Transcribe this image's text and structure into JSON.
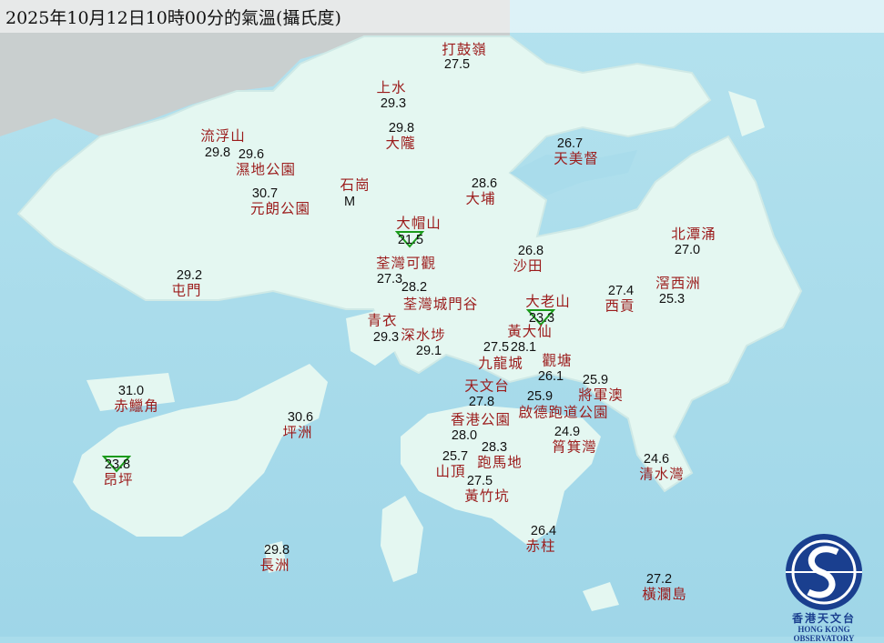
{
  "title": "2025年10月12日10時00分的氣溫(攝氏度)",
  "colors": {
    "sea": "#a9dceb",
    "land": "#e4f7f1",
    "station_name": "#9b1b1b",
    "temperature": "#111111",
    "min_marker": "#1a9a1a"
  },
  "stations": [
    {
      "name": "打鼓嶺",
      "temp": "27.5"
    },
    {
      "name": "上水",
      "temp": "29.3"
    },
    {
      "name": "大隴",
      "temp": "29.8"
    },
    {
      "name": "流浮山",
      "temp": "29.8"
    },
    {
      "name": "濕地公園",
      "temp": "29.6"
    },
    {
      "name": "天美督",
      "temp": "26.7"
    },
    {
      "name": "大埔",
      "temp": "28.6"
    },
    {
      "name": "石崗",
      "temp": "M"
    },
    {
      "name": "元朗公園",
      "temp": "30.7"
    },
    {
      "name": "大帽山",
      "temp": "21.5",
      "marker": "min-triangle"
    },
    {
      "name": "北潭涌",
      "temp": "27.0"
    },
    {
      "name": "沙田",
      "temp": "26.8"
    },
    {
      "name": "荃灣可觀",
      "temp": "27.3"
    },
    {
      "name": "屯門",
      "temp": "29.2"
    },
    {
      "name": "西貢",
      "temp": "27.4"
    },
    {
      "name": "滘西洲",
      "temp": "25.3"
    },
    {
      "name": "荃灣城門谷",
      "temp": "28.2"
    },
    {
      "name": "大老山",
      "temp": "23.3",
      "marker": "min-triangle"
    },
    {
      "name": "青衣",
      "temp": "29.3"
    },
    {
      "name": "深水埗",
      "temp": "29.1"
    },
    {
      "name": "黃大仙",
      "temp": "28.1"
    },
    {
      "name": "九龍城",
      "temp": "27.5"
    },
    {
      "name": "觀塘",
      "temp": "26.1"
    },
    {
      "name": "將軍澳",
      "temp": "25.9"
    },
    {
      "name": "天文台",
      "temp": "27.8"
    },
    {
      "name": "啟德跑道公園",
      "temp": "25.9"
    },
    {
      "name": "香港公園",
      "temp": "28.0"
    },
    {
      "name": "筲箕灣",
      "temp": "24.9"
    },
    {
      "name": "跑馬地",
      "temp": "28.3"
    },
    {
      "name": "山頂",
      "temp": "25.7"
    },
    {
      "name": "黃竹坑",
      "temp": "27.5"
    },
    {
      "name": "赤鱲角",
      "temp": "31.0"
    },
    {
      "name": "坪洲",
      "temp": "30.6"
    },
    {
      "name": "昂坪",
      "temp": "23.8",
      "marker": "min-triangle"
    },
    {
      "name": "清水灣",
      "temp": "24.6"
    },
    {
      "name": "赤柱",
      "temp": "26.4"
    },
    {
      "name": "長洲",
      "temp": "29.8"
    },
    {
      "name": "橫瀾島",
      "temp": "27.2"
    }
  ],
  "logo": {
    "name_cn": "香港天文台",
    "name_en": "HONG KONG OBSERVATORY"
  }
}
